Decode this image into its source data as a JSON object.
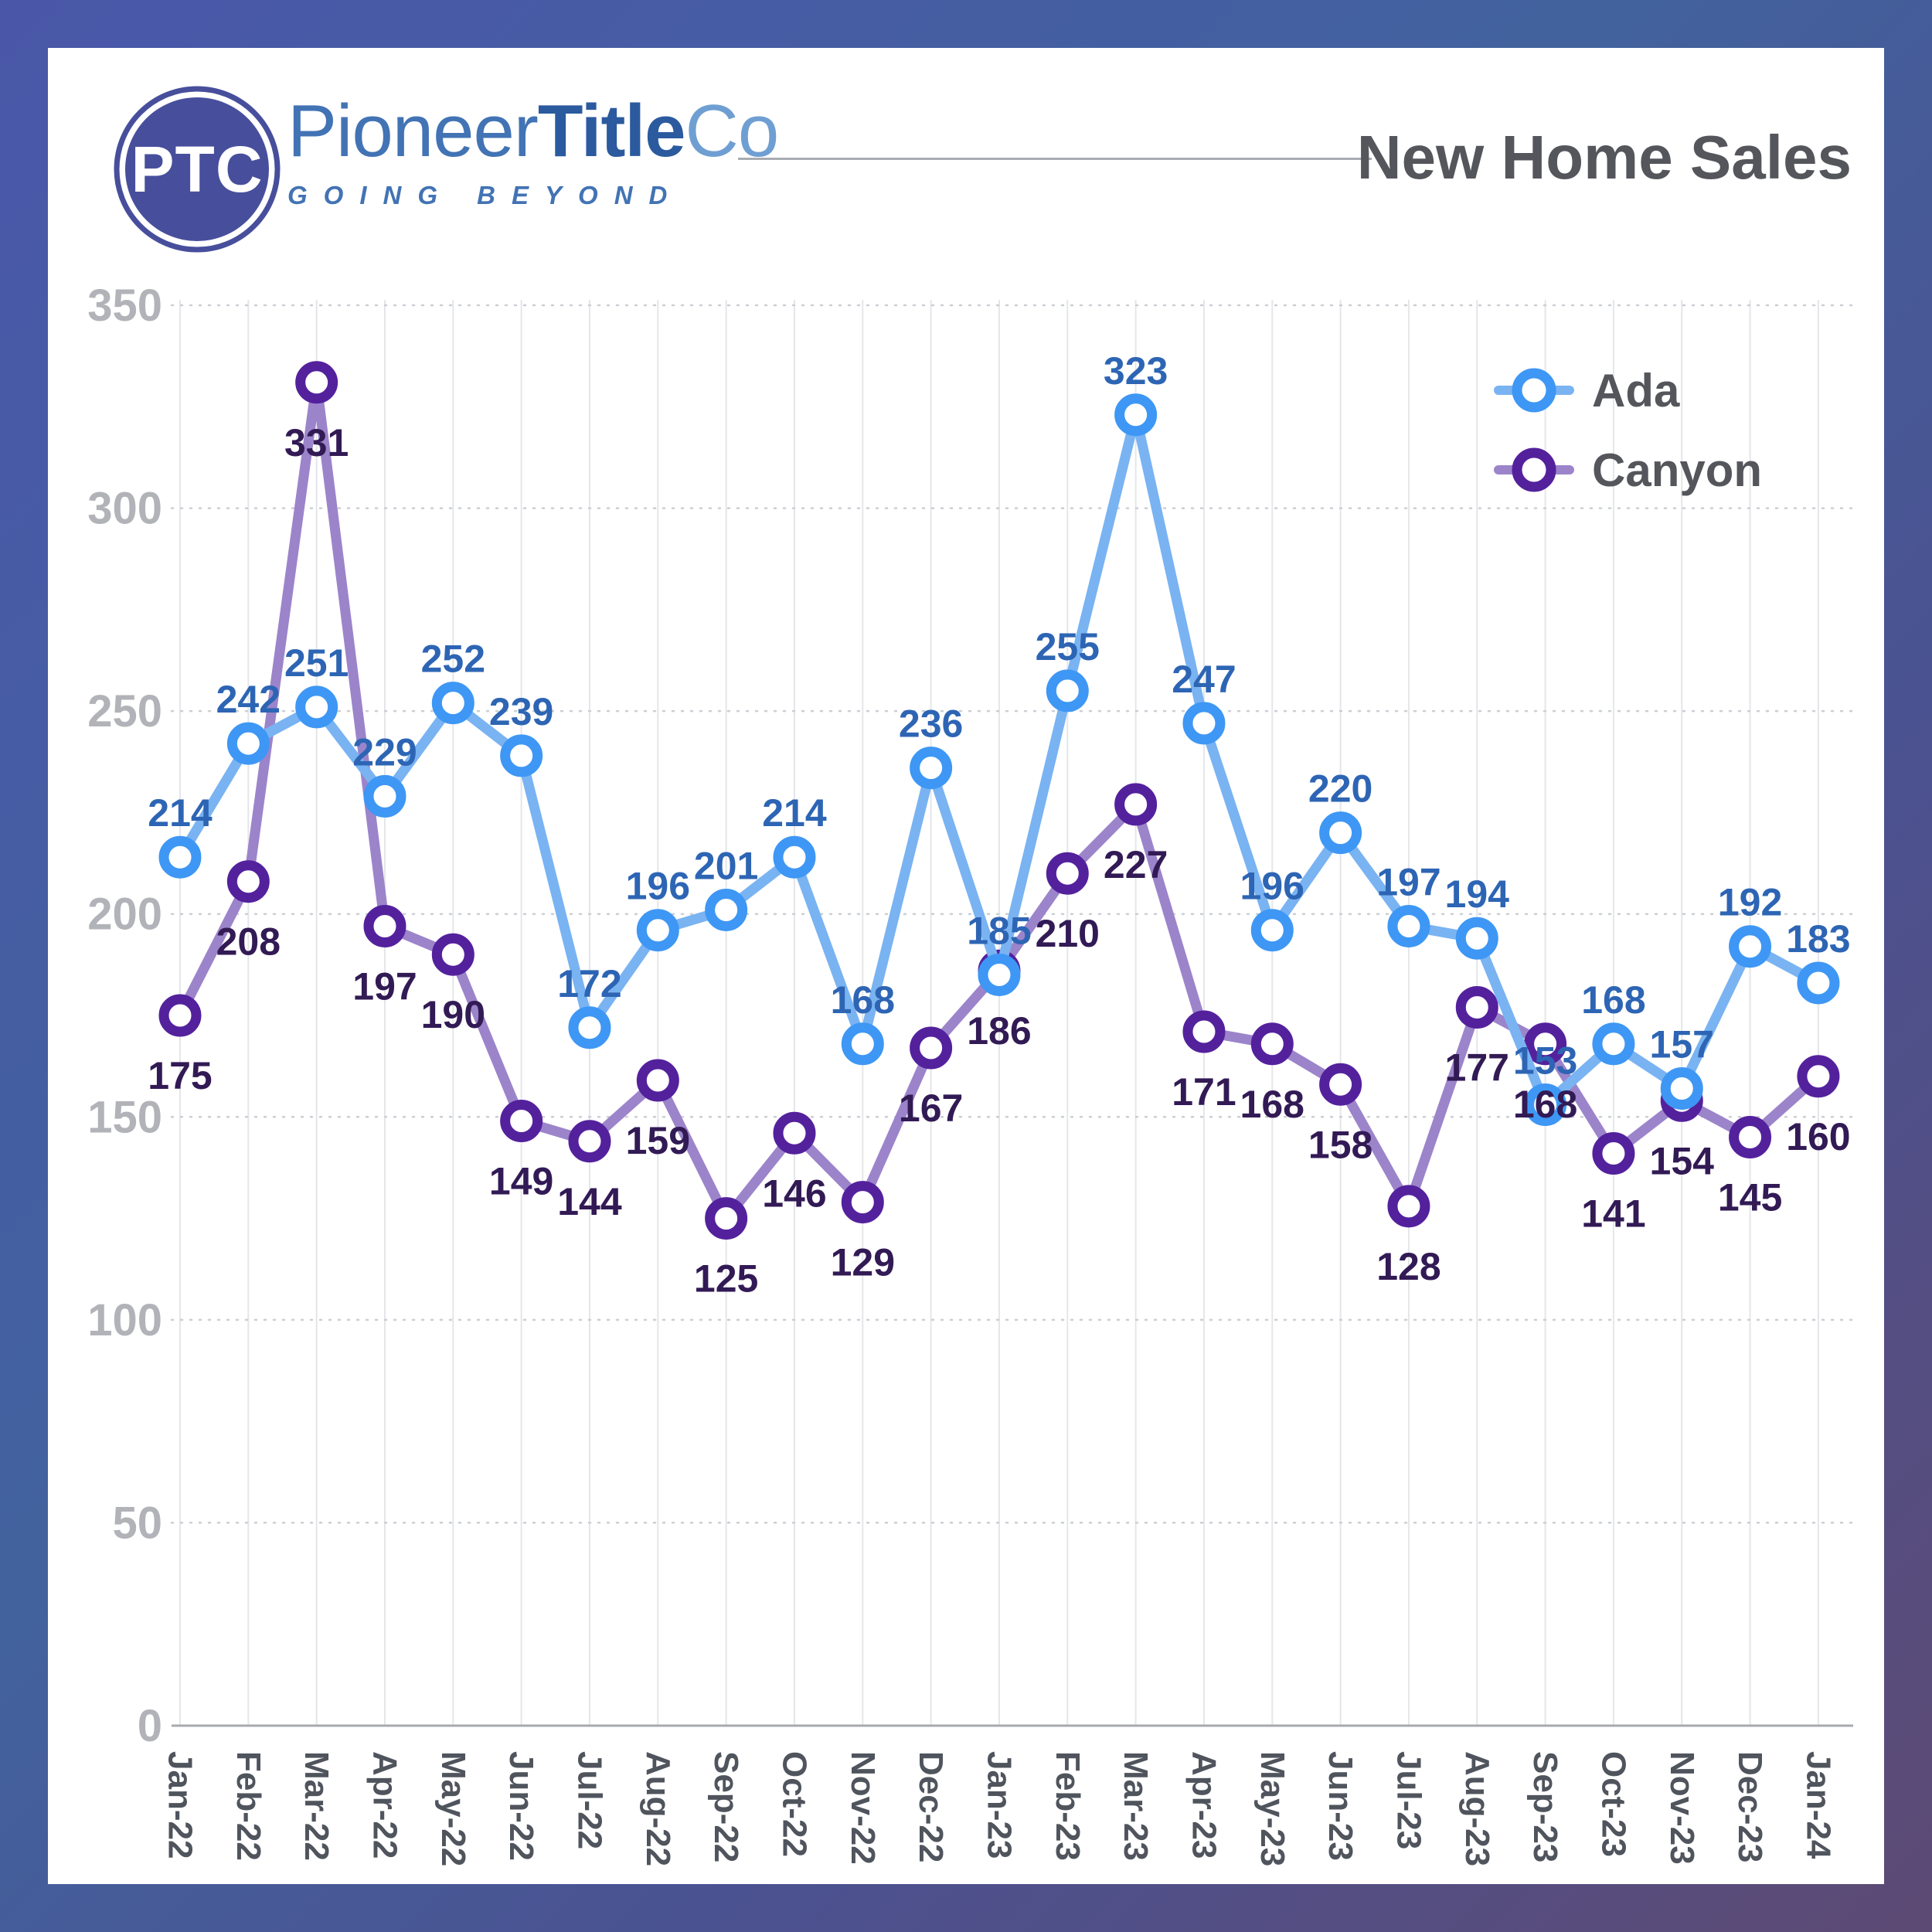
{
  "brand": {
    "logo_monogram": "PTC",
    "name_part1": "Pioneer",
    "name_part2": "Title",
    "name_part3": "Co",
    "tagline": "GOING BEYOND"
  },
  "header": {
    "title": "New Home Sales"
  },
  "colors": {
    "frame_gradient_start": "#4a57a9",
    "frame_gradient_end": "#5d4a74",
    "card_background": "#ffffff",
    "logo_blue": "#474f9c",
    "brand_blue": "#4273b4",
    "title_gray": "#54565c",
    "y_tick_gray": "#b1b3b8",
    "x_tick_gray": "#4f545d",
    "gridline_vertical": "#e4e6e9",
    "gridline_dotted": "#cbced3",
    "axis_line": "#a7aaaf"
  },
  "chart_data": {
    "type": "line",
    "title": "New Home Sales",
    "xlabel": "",
    "ylabel": "",
    "ylim": [
      0,
      350
    ],
    "ytick_step": 50,
    "grid": {
      "horizontal": "dotted",
      "vertical": "solid"
    },
    "legend_position": "top-right",
    "categories": [
      "Jan-22",
      "Feb-22",
      "Mar-22",
      "Apr-22",
      "May-22",
      "Jun-22",
      "Jul-22",
      "Aug-22",
      "Sep-22",
      "Oct-22",
      "Nov-22",
      "Dec-22",
      "Jan-23",
      "Feb-23",
      "Mar-23",
      "Apr-23",
      "May-23",
      "Jun-23",
      "Jul-23",
      "Aug-23",
      "Sep-23",
      "Oct-23",
      "Nov-23",
      "Dec-23",
      "Jan-24"
    ],
    "series": [
      {
        "name": "Ada",
        "marker_color": "#3e97f4",
        "line_color": "#79b3f2",
        "label_color": "#2d65b4",
        "label_position": "above",
        "values": [
          214,
          242,
          251,
          229,
          252,
          239,
          172,
          196,
          201,
          214,
          168,
          236,
          185,
          255,
          323,
          247,
          196,
          220,
          197,
          194,
          153,
          168,
          157,
          192,
          183
        ]
      },
      {
        "name": "Canyon",
        "marker_color": "#54219d",
        "line_color": "#9c84cb",
        "label_color": "#321a55",
        "label_position": "below",
        "values": [
          175,
          208,
          331,
          197,
          190,
          149,
          144,
          159,
          125,
          146,
          129,
          167,
          186,
          210,
          227,
          171,
          168,
          158,
          128,
          177,
          168,
          141,
          154,
          145,
          160
        ]
      }
    ]
  }
}
